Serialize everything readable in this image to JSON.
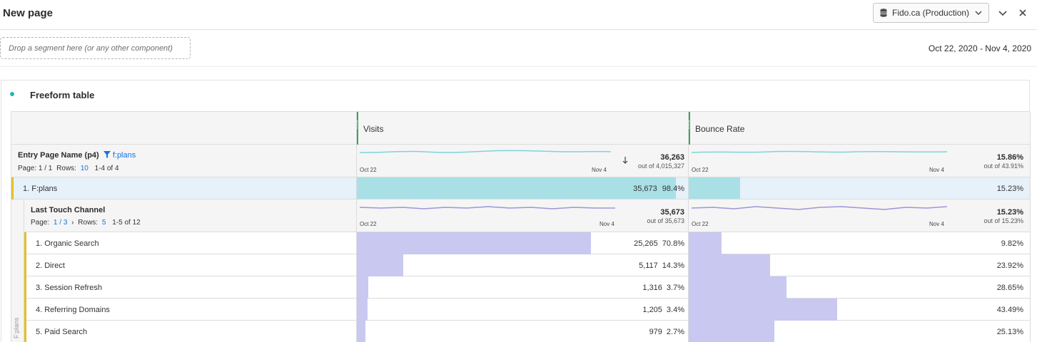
{
  "header": {
    "title": "New page",
    "report_suite": "Fido.ca (Production)"
  },
  "segment_bar": {
    "drop_placeholder": "Drop a segment here (or any other component)",
    "date_range": "Oct 22, 2020 - Nov 4, 2020"
  },
  "panel": {
    "title": "Freeform table"
  },
  "colors": {
    "teal_bar": "#a8e0e6",
    "purple_bar": "#c8c8f0",
    "row_highlight": "#e6f1fa",
    "grip": "#3aa55c",
    "accent_yellow": "#e3c02d"
  },
  "table": {
    "columns": [
      {
        "label": "Visits"
      },
      {
        "label": "Bounce Rate"
      }
    ],
    "dimension": {
      "name": "Entry Page Name (p4)",
      "filter": "f:plans",
      "page_label": "Page: 1 / 1",
      "rows_label": "Rows:",
      "rows_value": "10",
      "range": "1-4 of 4"
    },
    "totals": {
      "visits": "36,263",
      "visits_outof": "out of 4,015,327",
      "bounce": "15.86%",
      "bounce_outof": "out of 43.91%",
      "start_label": "Oct 22",
      "end_label": "Nov 4",
      "sort_icon": "sort-descending-icon"
    },
    "top_row": {
      "label": "1. F:plans",
      "visits": "35,673",
      "visits_pct": "98.4%",
      "visits_share": 0.984,
      "bounce": "15.23%",
      "bounce_share": 0.1523
    },
    "breakdown": {
      "name": "Last Touch Channel",
      "side_label": "F:plans",
      "page_label": "Page:",
      "page_value": "1 / 3",
      "rows_label": "Rows:",
      "rows_value": "5",
      "range": "1-5 of 12",
      "visits_total": "35,673",
      "visits_outof": "out of 35,673",
      "bounce_total": "15.23%",
      "bounce_outof": "out of 15.23%",
      "start_label": "Oct 22",
      "end_label": "Nov 4",
      "rows": [
        {
          "label": "1. Organic Search",
          "visits": "25,265",
          "visits_pct": "70.8%",
          "visits_share": 0.708,
          "bounce": "9.82%",
          "bounce_share": 0.0982
        },
        {
          "label": "2. Direct",
          "visits": "5,117",
          "visits_pct": "14.3%",
          "visits_share": 0.143,
          "bounce": "23.92%",
          "bounce_share": 0.2392
        },
        {
          "label": "3. Session Refresh",
          "visits": "1,316",
          "visits_pct": "3.7%",
          "visits_share": 0.037,
          "bounce": "28.65%",
          "bounce_share": 0.2865
        },
        {
          "label": "4. Referring Domains",
          "visits": "1,205",
          "visits_pct": "3.4%",
          "visits_share": 0.034,
          "bounce": "43.49%",
          "bounce_share": 0.4349
        },
        {
          "label": "5. Paid Search",
          "visits": "979",
          "visits_pct": "2.7%",
          "visits_share": 0.027,
          "bounce": "25.13%",
          "bounce_share": 0.2513
        }
      ]
    }
  }
}
